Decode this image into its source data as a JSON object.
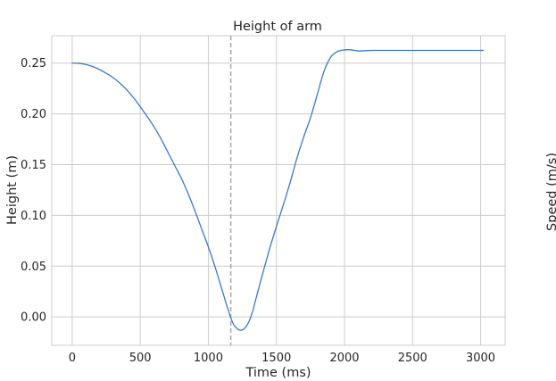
{
  "chart_data": {
    "type": "line",
    "title": "Height of arm",
    "xlabel": "Time (ms)",
    "ylabel": "Height (m)",
    "y2label": "Speed (m/s)",
    "xlim": [
      -150,
      3180
    ],
    "ylim": [
      -0.028,
      0.277
    ],
    "xticks": [
      0,
      500,
      1000,
      1500,
      2000,
      2500,
      3000
    ],
    "yticks": [
      0.0,
      0.05,
      0.1,
      0.15,
      0.2,
      0.25
    ],
    "xtick_labels": [
      "0",
      "500",
      "1000",
      "1500",
      "2000",
      "2500",
      "3000"
    ],
    "ytick_labels": [
      "0.00",
      "0.05",
      "0.10",
      "0.15",
      "0.20",
      "0.25"
    ],
    "grid": true,
    "vline": {
      "x": 1165,
      "style": "dashed",
      "color": "#a6a6a6"
    },
    "series": [
      {
        "color": "#3a78c4",
        "x": [
          0,
          50,
          100,
          150,
          200,
          250,
          300,
          350,
          400,
          450,
          500,
          550,
          600,
          650,
          700,
          750,
          800,
          850,
          900,
          950,
          1000,
          1050,
          1100,
          1150,
          1180,
          1200,
          1230,
          1260,
          1290,
          1320,
          1350,
          1400,
          1450,
          1500,
          1550,
          1600,
          1650,
          1700,
          1750,
          1800,
          1850,
          1900,
          1950,
          2000,
          2030,
          2060,
          2100,
          2150,
          2200,
          2300,
          2500,
          2700,
          2900,
          3020
        ],
        "y": [
          0.25,
          0.2497,
          0.2487,
          0.2467,
          0.2437,
          0.24,
          0.2357,
          0.2303,
          0.2238,
          0.216,
          0.207,
          0.1975,
          0.1875,
          0.176,
          0.163,
          0.15,
          0.137,
          0.122,
          0.105,
          0.087,
          0.069,
          0.049,
          0.027,
          0.005,
          -0.006,
          -0.01,
          -0.013,
          -0.012,
          -0.007,
          0.003,
          0.018,
          0.043,
          0.067,
          0.089,
          0.11,
          0.132,
          0.156,
          0.177,
          0.196,
          0.219,
          0.242,
          0.256,
          0.2615,
          0.263,
          0.2632,
          0.2628,
          0.262,
          0.2622,
          0.2625,
          0.2625,
          0.2625,
          0.2625,
          0.2625,
          0.2625
        ]
      }
    ]
  }
}
